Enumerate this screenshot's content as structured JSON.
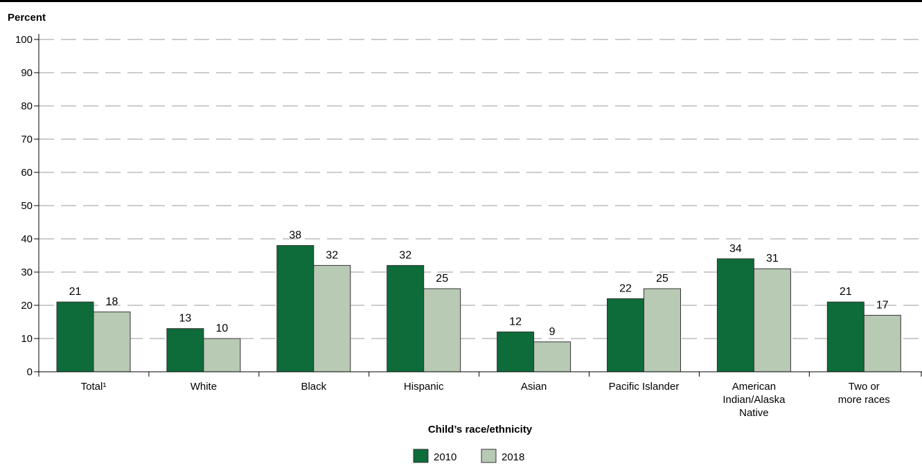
{
  "chart_data": {
    "type": "bar",
    "ylabel": "Percent",
    "xlabel": "Child’s race/ethnicity",
    "ylim": [
      0,
      100
    ],
    "yticks": [
      "0",
      "10",
      "20",
      "30",
      "40",
      "50",
      "60",
      "70",
      "80",
      "90",
      "100"
    ],
    "grid": true,
    "legend_position": "bottom",
    "categories": [
      [
        "Total¹"
      ],
      [
        "White"
      ],
      [
        "Black"
      ],
      [
        "Hispanic"
      ],
      [
        "Asian"
      ],
      [
        "Pacific Islander"
      ],
      [
        "American",
        "Indian/Alaska",
        "Native"
      ],
      [
        "Two or",
        "more races"
      ]
    ],
    "series": [
      {
        "name": "2010",
        "color": "#0e6b3a",
        "values": [
          21,
          13,
          38,
          32,
          12,
          22,
          34,
          21
        ],
        "labels": [
          "21",
          "13",
          "38",
          "32",
          "12",
          "22",
          "34",
          "21"
        ]
      },
      {
        "name": "2018",
        "color": "#b8c9b4",
        "values": [
          18,
          10,
          32,
          25,
          9,
          25,
          31,
          17
        ],
        "labels": [
          "18",
          "10",
          "32",
          "25",
          "9",
          "25",
          "31",
          "17"
        ]
      }
    ]
  }
}
